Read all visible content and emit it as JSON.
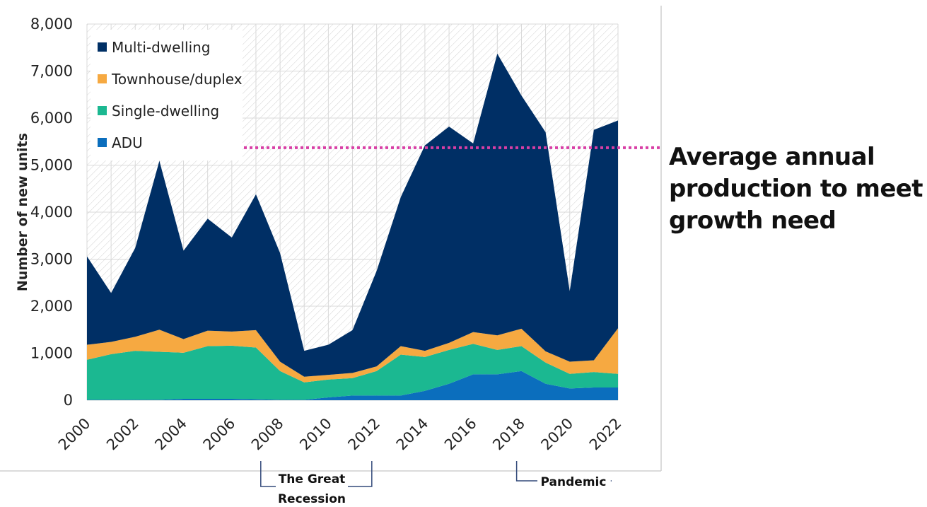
{
  "target_line_label": "Average annual production to meet growth need",
  "annotations": {
    "recession": "The Great Recession",
    "recession_line1": "The Great",
    "recession_line2": "Recession",
    "pandemic": "Pandemic"
  },
  "colors": {
    "Multi-dwelling": "#002f65",
    "Townhouse/duplex": "#f6a941",
    "Single-dwelling": "#1bb891",
    "ADU": "#0b6ebd",
    "target_line": "#d83ea5"
  },
  "chart_data": {
    "type": "area",
    "stacked": true,
    "title": "",
    "xlabel": "",
    "ylabel": "Number of new units",
    "x": [
      2000,
      2001,
      2002,
      2003,
      2004,
      2005,
      2006,
      2007,
      2008,
      2009,
      2010,
      2011,
      2012,
      2013,
      2014,
      2015,
      2016,
      2017,
      2018,
      2019,
      2020,
      2021,
      2022
    ],
    "x_tick_labels": [
      "2000",
      "2002",
      "2004",
      "2006",
      "2008",
      "2010",
      "2012",
      "2014",
      "2016",
      "2018",
      "2020",
      "2022"
    ],
    "y_tick_labels": [
      "0",
      "1,000",
      "2,000",
      "3,000",
      "4,000",
      "5,000",
      "6,000",
      "7,000",
      "8,000"
    ],
    "ylim": [
      0,
      8000
    ],
    "grid": true,
    "legend_position": "top-left",
    "series": [
      {
        "name": "ADU",
        "values": [
          10,
          10,
          10,
          10,
          30,
          30,
          30,
          20,
          10,
          10,
          60,
          100,
          100,
          100,
          200,
          350,
          550,
          550,
          620,
          350,
          250,
          270,
          270
        ]
      },
      {
        "name": "Single-dwelling",
        "values": [
          850,
          970,
          1040,
          1020,
          980,
          1120,
          1130,
          1100,
          610,
          370,
          380,
          370,
          520,
          870,
          720,
          720,
          650,
          520,
          530,
          450,
          310,
          330,
          290
        ]
      },
      {
        "name": "Townhouse/duplex",
        "values": [
          320,
          260,
          300,
          470,
          290,
          330,
          300,
          370,
          200,
          120,
          100,
          110,
          100,
          180,
          130,
          150,
          250,
          310,
          370,
          240,
          260,
          250,
          970
        ]
      },
      {
        "name": "Multi-dwelling",
        "values": [
          1880,
          1040,
          1890,
          3590,
          1880,
          2380,
          2000,
          2890,
          2310,
          550,
          640,
          910,
          2030,
          3170,
          4370,
          4600,
          4010,
          5990,
          4960,
          4660,
          1500,
          4900,
          4420
        ]
      }
    ],
    "legend_order": [
      "Multi-dwelling",
      "Townhouse/duplex",
      "Single-dwelling",
      "ADU"
    ],
    "reference_line": {
      "value": 5370,
      "label": "Average annual production to meet growth need"
    },
    "brackets": [
      {
        "label": "The Great Recession",
        "x_start": 2007.2,
        "x_end": 2011.8
      },
      {
        "label": "Pandemic",
        "x_start": 2017.8,
        "x_end": 2021.7
      }
    ]
  }
}
